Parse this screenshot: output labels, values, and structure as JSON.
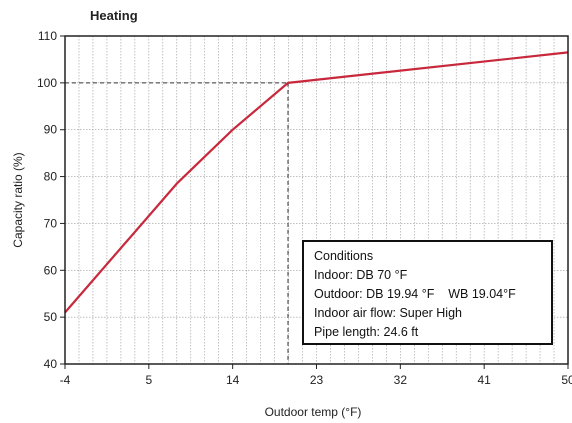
{
  "chart_data": {
    "type": "line",
    "title": "Heating",
    "xlabel": "Outdoor temp (°F)",
    "ylabel": "Capacity ratio (%)",
    "xlim": [
      -4,
      50
    ],
    "ylim": [
      40,
      110
    ],
    "x_ticks": [
      -4,
      5,
      14,
      23,
      32,
      41,
      50
    ],
    "y_ticks": [
      40,
      50,
      60,
      70,
      80,
      90,
      100,
      110
    ],
    "grid": true,
    "series": [
      {
        "color": "#c8283c",
        "x": [
          -4,
          8,
          14,
          19.94,
          50
        ],
        "y": [
          51,
          78.5,
          90,
          100,
          106.5
        ]
      }
    ],
    "reference_point": {
      "x": 19.94,
      "y": 100
    },
    "annotation": {
      "lines": [
        "Conditions",
        "Indoor: DB 70 °F",
        "Outdoor: DB 19.94 °F    WB 19.04°F",
        "Indoor air flow: Super High",
        "Pipe length: 24.6 ft"
      ]
    }
  }
}
